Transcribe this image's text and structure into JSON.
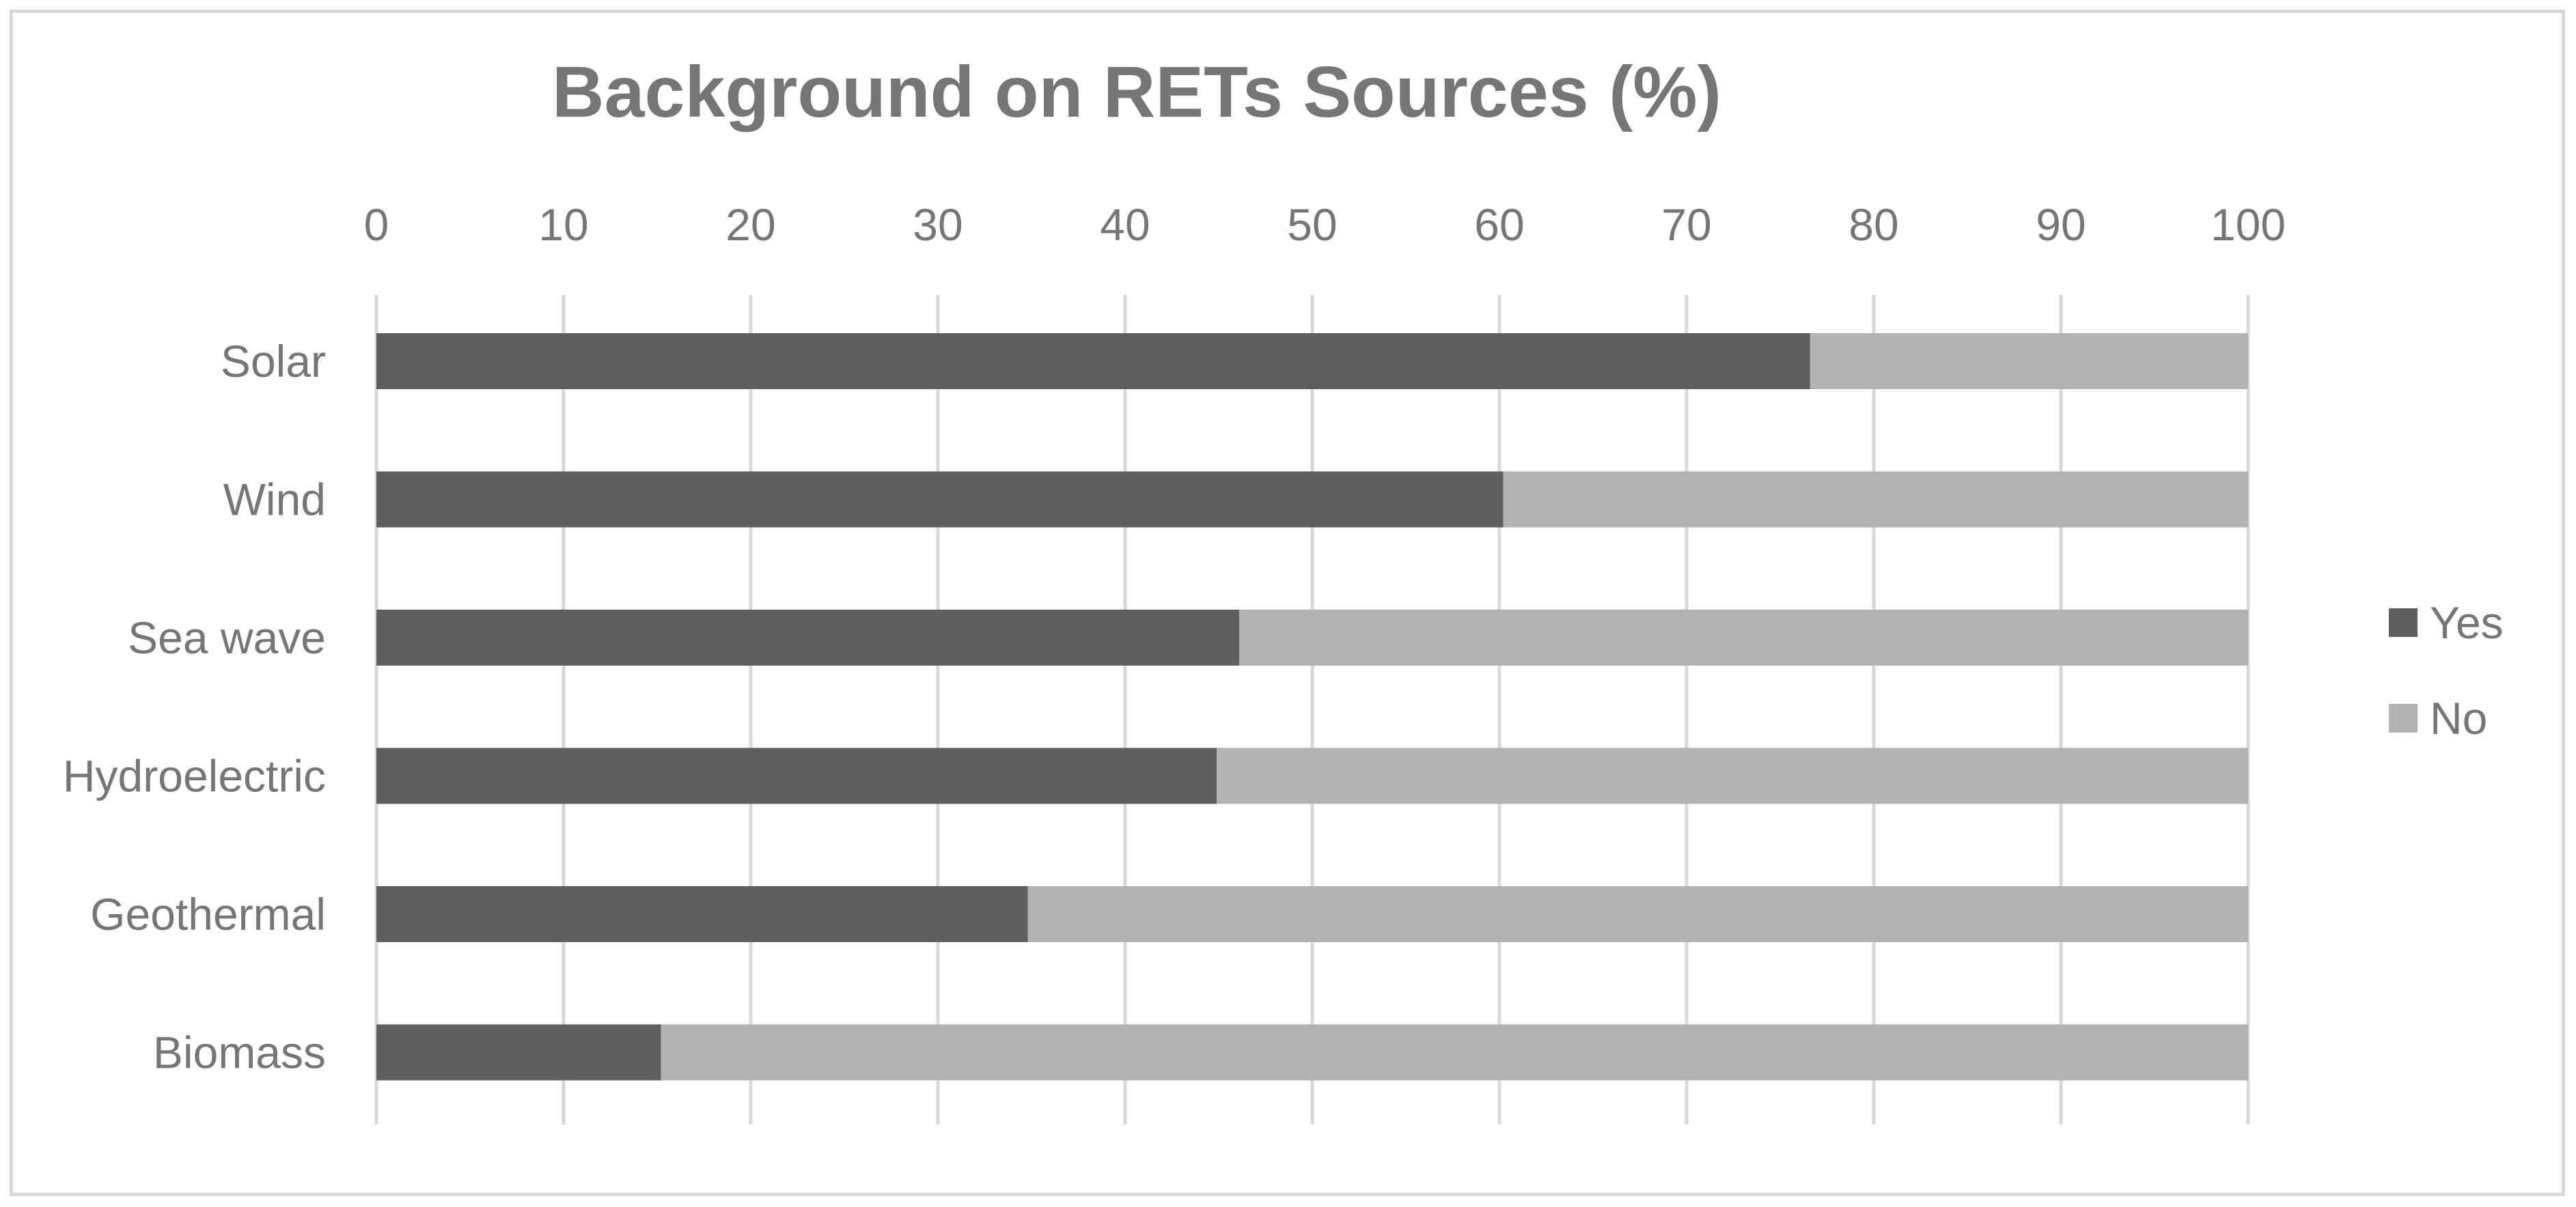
{
  "chart_data": {
    "type": "bar",
    "orientation": "horizontal",
    "stacked": true,
    "title": "Background on RETs Sources (%)",
    "xlabel": "",
    "ylabel": "",
    "xlim": [
      0,
      100
    ],
    "x_ticks": [
      "0",
      "10",
      "20",
      "30",
      "40",
      "50",
      "60",
      "70",
      "80",
      "90",
      "100"
    ],
    "x_axis_position": "top",
    "grid": true,
    "legend_position": "right",
    "categories": [
      "Solar",
      "Wind",
      "Sea wave",
      "Hydroelectric",
      "Geothermal",
      "Biomass"
    ],
    "series": [
      {
        "name": "Yes",
        "color": "#5f5f5f",
        "values": [
          76.6,
          60.2,
          46.1,
          44.9,
          34.8,
          15.2
        ]
      },
      {
        "name": "No",
        "color": "#b2b2b2",
        "values": [
          23.4,
          39.8,
          53.9,
          55.1,
          65.2,
          84.8
        ]
      }
    ]
  },
  "colors": {
    "frame_border": "#d9d9d9",
    "gridline": "#d9d9d9",
    "text": "#767676"
  }
}
